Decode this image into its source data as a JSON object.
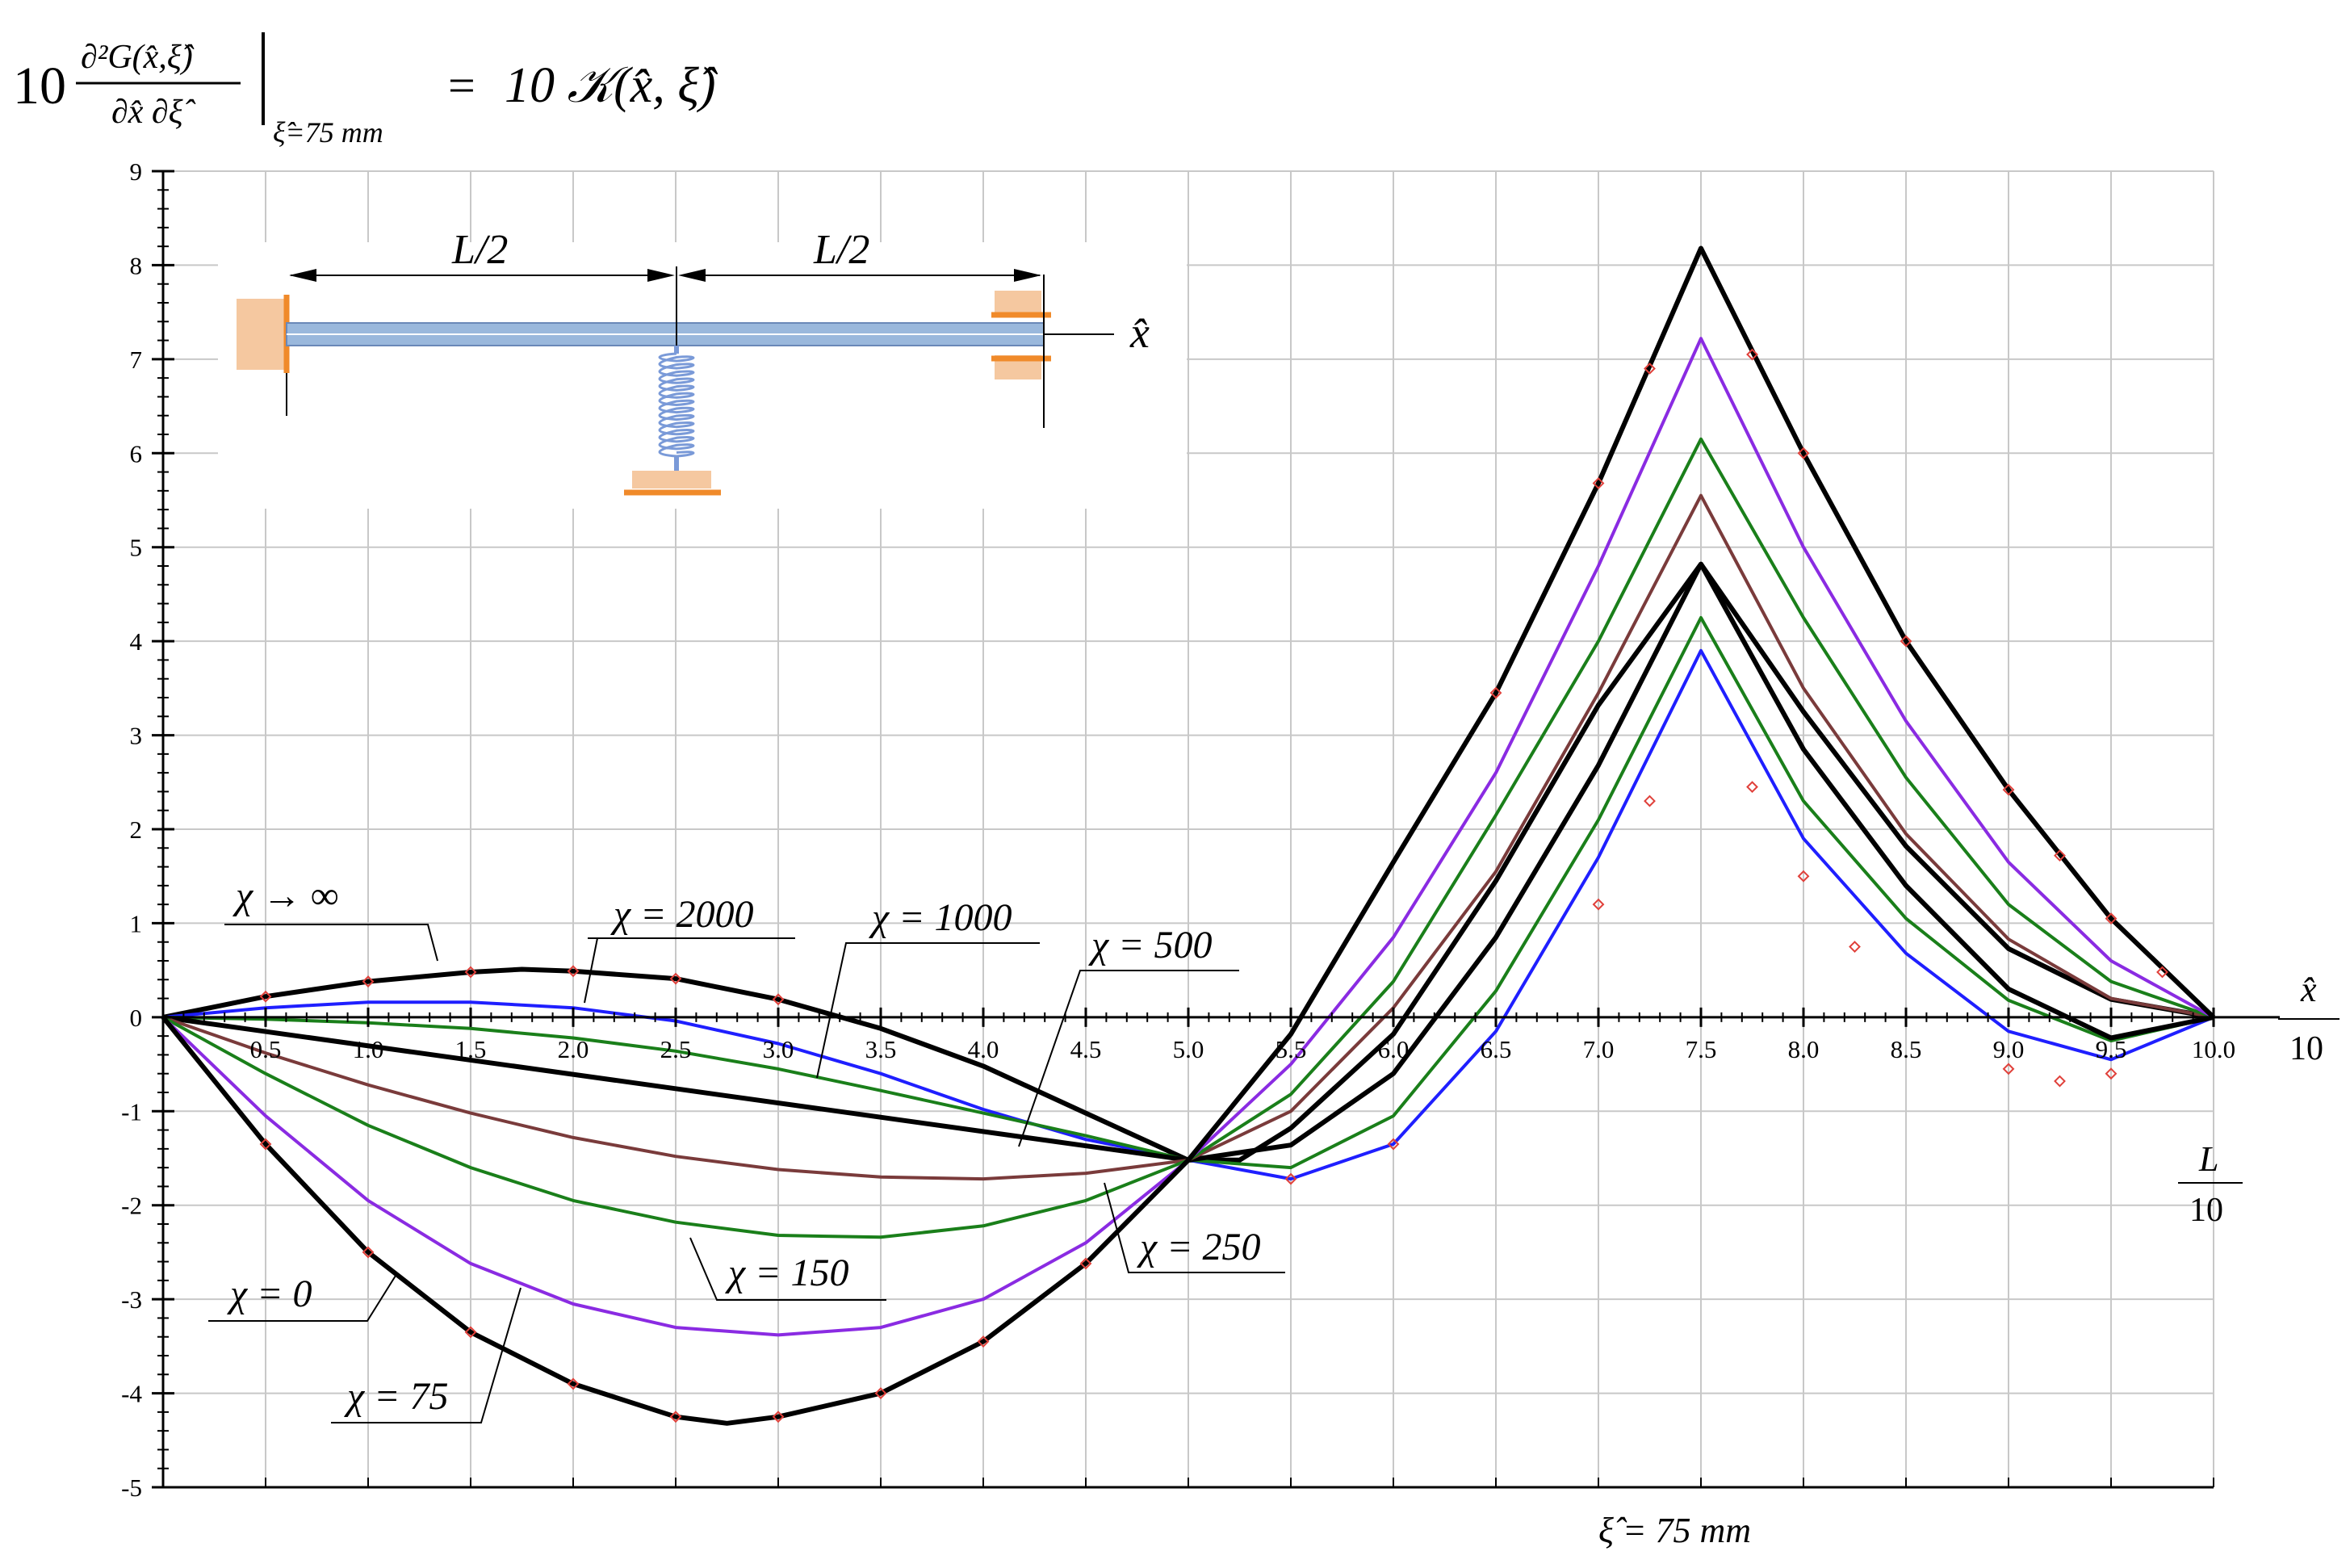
{
  "title": {
    "lhs_coeff": "10",
    "lhs_numerator": "∂²G(x̂,ξ̂)",
    "lhs_denominator": "∂x̂ ∂ξ̂",
    "lhs_subscript": "ξ̂=75 mm",
    "equals": "=",
    "rhs": "10 𝒦(x̂, ξ̂)"
  },
  "footer": {
    "xi_note": "ξ̂ = 75 mm"
  },
  "x_unit": {
    "numerator": "x̂",
    "denominator": "10"
  },
  "l_unit": {
    "numerator": "L",
    "denominator": "10"
  },
  "inset": {
    "left_span": "L/2",
    "right_span": "L/2",
    "axis_label": "x̂"
  },
  "colors": {
    "black": "#000000",
    "blue": "#1f1fff",
    "green": "#1a7f1a",
    "brown": "#7a3b3b",
    "purple": "#8a2be2",
    "marker": "#e0403a",
    "grid": "#c8c8c8",
    "support": "#f5c8a0",
    "support_edge": "#f08a2a",
    "beam": "#9ab8dc",
    "spring": "#7a9ad8"
  },
  "chart_data": {
    "type": "line",
    "xlim": [
      0,
      10
    ],
    "ylim": [
      -5,
      9
    ],
    "x_ticks": [
      "0.5",
      "1.0",
      "1.5",
      "2.0",
      "2.5",
      "3.0",
      "3.5",
      "4.0",
      "4.5",
      "5.0",
      "5.5",
      "6.0",
      "6.5",
      "7.0",
      "7.5",
      "8.0",
      "8.5",
      "9.0",
      "9.5",
      "10.0"
    ],
    "y_ticks": [
      "-5",
      "-4",
      "-3",
      "-2",
      "-1",
      "0",
      "1",
      "2",
      "3",
      "4",
      "5",
      "6",
      "7",
      "8",
      "9"
    ],
    "grid": true,
    "series": [
      {
        "name": "χ → ∞",
        "color": "black",
        "width": 3,
        "points": [
          [
            0,
            0
          ],
          [
            0.5,
            0.22
          ],
          [
            1,
            0.38
          ],
          [
            1.5,
            0.48
          ],
          [
            1.75,
            0.51
          ],
          [
            2,
            0.49
          ],
          [
            2.5,
            0.41
          ],
          [
            3,
            0.19
          ],
          [
            3.5,
            -0.12
          ],
          [
            4,
            -0.52
          ],
          [
            4.5,
            -1.02
          ],
          [
            5,
            -1.52
          ],
          [
            5.25,
            -1.52
          ],
          [
            5.5,
            -1.18
          ],
          [
            6,
            -0.18
          ],
          [
            6.5,
            1.45
          ],
          [
            7,
            3.32
          ],
          [
            7.5,
            4.82
          ],
          [
            8,
            3.25
          ],
          [
            8.5,
            1.82
          ],
          [
            9,
            0.73
          ],
          [
            9.5,
            0.19
          ],
          [
            10,
            0
          ]
        ]
      },
      {
        "name": "χ = 2000",
        "color": "blue",
        "width": 2,
        "points": [
          [
            0,
            0
          ],
          [
            0.5,
            0.1
          ],
          [
            1,
            0.16
          ],
          [
            1.5,
            0.16
          ],
          [
            2,
            0.1
          ],
          [
            2.5,
            -0.04
          ],
          [
            3,
            -0.28
          ],
          [
            3.5,
            -0.6
          ],
          [
            4,
            -0.98
          ],
          [
            4.5,
            -1.3
          ],
          [
            5,
            -1.52
          ],
          [
            5.5,
            -1.72
          ],
          [
            6,
            -1.35
          ],
          [
            6.5,
            -0.15
          ],
          [
            7,
            1.7
          ],
          [
            7.5,
            3.9
          ],
          [
            8,
            1.9
          ],
          [
            8.5,
            0.68
          ],
          [
            9,
            -0.15
          ],
          [
            9.5,
            -0.45
          ],
          [
            10,
            0
          ]
        ]
      },
      {
        "name": "χ = 1000",
        "color": "green",
        "width": 2,
        "points": [
          [
            0,
            0
          ],
          [
            0.5,
            -0.02
          ],
          [
            1,
            -0.06
          ],
          [
            1.5,
            -0.12
          ],
          [
            2,
            -0.22
          ],
          [
            2.5,
            -0.36
          ],
          [
            3,
            -0.55
          ],
          [
            3.5,
            -0.78
          ],
          [
            4,
            -1.02
          ],
          [
            4.5,
            -1.26
          ],
          [
            5,
            -1.52
          ],
          [
            5.5,
            -1.6
          ],
          [
            6,
            -1.05
          ],
          [
            6.5,
            0.28
          ],
          [
            7,
            2.1
          ],
          [
            7.5,
            4.25
          ],
          [
            8,
            2.3
          ],
          [
            8.5,
            1.05
          ],
          [
            9,
            0.18
          ],
          [
            9.5,
            -0.25
          ],
          [
            10,
            0
          ]
        ]
      },
      {
        "name": "χ = 500",
        "color": "black",
        "width": 3,
        "points": [
          [
            0,
            0
          ],
          [
            5,
            -1.52
          ],
          [
            5.5,
            -1.36
          ],
          [
            6,
            -0.6
          ],
          [
            6.5,
            0.85
          ],
          [
            7,
            2.68
          ],
          [
            7.5,
            4.82
          ],
          [
            8,
            2.85
          ],
          [
            8.5,
            1.4
          ],
          [
            9,
            0.3
          ],
          [
            9.5,
            -0.22
          ],
          [
            10,
            0
          ]
        ]
      },
      {
        "name": "χ = 250",
        "color": "brown",
        "width": 2,
        "points": [
          [
            0,
            0
          ],
          [
            0.5,
            -0.38
          ],
          [
            1,
            -0.72
          ],
          [
            1.5,
            -1.02
          ],
          [
            2,
            -1.28
          ],
          [
            2.5,
            -1.48
          ],
          [
            3,
            -1.62
          ],
          [
            3.5,
            -1.7
          ],
          [
            4,
            -1.72
          ],
          [
            4.5,
            -1.66
          ],
          [
            5,
            -1.52
          ],
          [
            5.5,
            -1.0
          ],
          [
            6,
            0.1
          ],
          [
            6.5,
            1.55
          ],
          [
            7,
            3.45
          ],
          [
            7.5,
            5.55
          ],
          [
            8,
            3.5
          ],
          [
            8.5,
            1.95
          ],
          [
            9,
            0.83
          ],
          [
            9.5,
            0.2
          ],
          [
            10,
            0
          ]
        ]
      },
      {
        "name": "χ = 150",
        "color": "green",
        "width": 2,
        "points": [
          [
            0,
            0
          ],
          [
            0.5,
            -0.6
          ],
          [
            1,
            -1.15
          ],
          [
            1.5,
            -1.6
          ],
          [
            2,
            -1.95
          ],
          [
            2.5,
            -2.18
          ],
          [
            3,
            -2.32
          ],
          [
            3.5,
            -2.34
          ],
          [
            4,
            -2.22
          ],
          [
            4.5,
            -1.95
          ],
          [
            5,
            -1.52
          ],
          [
            5.5,
            -0.82
          ],
          [
            6,
            0.38
          ],
          [
            6.5,
            2.15
          ],
          [
            7,
            4.0
          ],
          [
            7.5,
            6.15
          ],
          [
            8,
            4.25
          ],
          [
            8.5,
            2.55
          ],
          [
            9,
            1.2
          ],
          [
            9.5,
            0.38
          ],
          [
            10,
            0
          ]
        ]
      },
      {
        "name": "χ = 75",
        "color": "purple",
        "width": 2,
        "points": [
          [
            0,
            0
          ],
          [
            0.5,
            -1.05
          ],
          [
            1,
            -1.95
          ],
          [
            1.5,
            -2.62
          ],
          [
            2,
            -3.05
          ],
          [
            2.5,
            -3.3
          ],
          [
            3,
            -3.38
          ],
          [
            3.5,
            -3.3
          ],
          [
            4,
            -3.0
          ],
          [
            4.5,
            -2.4
          ],
          [
            5,
            -1.52
          ],
          [
            5.5,
            -0.5
          ],
          [
            6,
            0.85
          ],
          [
            6.5,
            2.6
          ],
          [
            7,
            4.8
          ],
          [
            7.5,
            7.22
          ],
          [
            8,
            5.0
          ],
          [
            8.5,
            3.15
          ],
          [
            9,
            1.65
          ],
          [
            9.5,
            0.6
          ],
          [
            10,
            0
          ]
        ]
      },
      {
        "name": "χ = 0",
        "color": "black",
        "width": 3,
        "points": [
          [
            0,
            0
          ],
          [
            0.5,
            -1.35
          ],
          [
            1,
            -2.5
          ],
          [
            1.5,
            -3.35
          ],
          [
            2,
            -3.9
          ],
          [
            2.5,
            -4.25
          ],
          [
            2.75,
            -4.32
          ],
          [
            3,
            -4.25
          ],
          [
            3.5,
            -4.0
          ],
          [
            4,
            -3.45
          ],
          [
            4.5,
            -2.62
          ],
          [
            5,
            -1.52
          ],
          [
            5.5,
            -0.18
          ],
          [
            6,
            1.65
          ],
          [
            6.5,
            3.45
          ],
          [
            7,
            5.68
          ],
          [
            7.5,
            8.18
          ],
          [
            8,
            6.0
          ],
          [
            8.5,
            4.0
          ],
          [
            9,
            2.42
          ],
          [
            9.5,
            1.05
          ],
          [
            10,
            0
          ]
        ]
      }
    ],
    "markers": [
      [
        0.5,
        0.22
      ],
      [
        1,
        0.38
      ],
      [
        1.5,
        0.48
      ],
      [
        2,
        0.49
      ],
      [
        2.5,
        0.41
      ],
      [
        3,
        0.19
      ],
      [
        0.5,
        -1.35
      ],
      [
        1,
        -2.5
      ],
      [
        1.5,
        -3.35
      ],
      [
        2,
        -3.9
      ],
      [
        2.5,
        -4.25
      ],
      [
        3,
        -4.25
      ],
      [
        3.5,
        -4.0
      ],
      [
        4,
        -3.45
      ],
      [
        4.5,
        -2.62
      ],
      [
        5.5,
        -1.72
      ],
      [
        6,
        -1.35
      ],
      [
        6.5,
        3.45
      ],
      [
        7,
        5.68
      ],
      [
        7.25,
        6.9
      ],
      [
        7.75,
        7.05
      ],
      [
        8,
        6.0
      ],
      [
        8.5,
        4.0
      ],
      [
        9,
        2.42
      ],
      [
        9.25,
        1.72
      ],
      [
        9.5,
        1.05
      ],
      [
        9.75,
        0.48
      ],
      [
        7,
        1.2
      ],
      [
        7.25,
        2.3
      ],
      [
        7.75,
        2.45
      ],
      [
        8,
        1.5
      ],
      [
        8.25,
        0.75
      ],
      [
        9,
        -0.55
      ],
      [
        9.25,
        -0.68
      ],
      [
        9.5,
        -0.6
      ]
    ],
    "curve_labels": [
      "χ → ∞",
      "χ = 2000",
      "χ = 1000",
      "χ = 500",
      "χ = 250",
      "χ = 150",
      "χ = 75",
      "χ = 0"
    ]
  }
}
